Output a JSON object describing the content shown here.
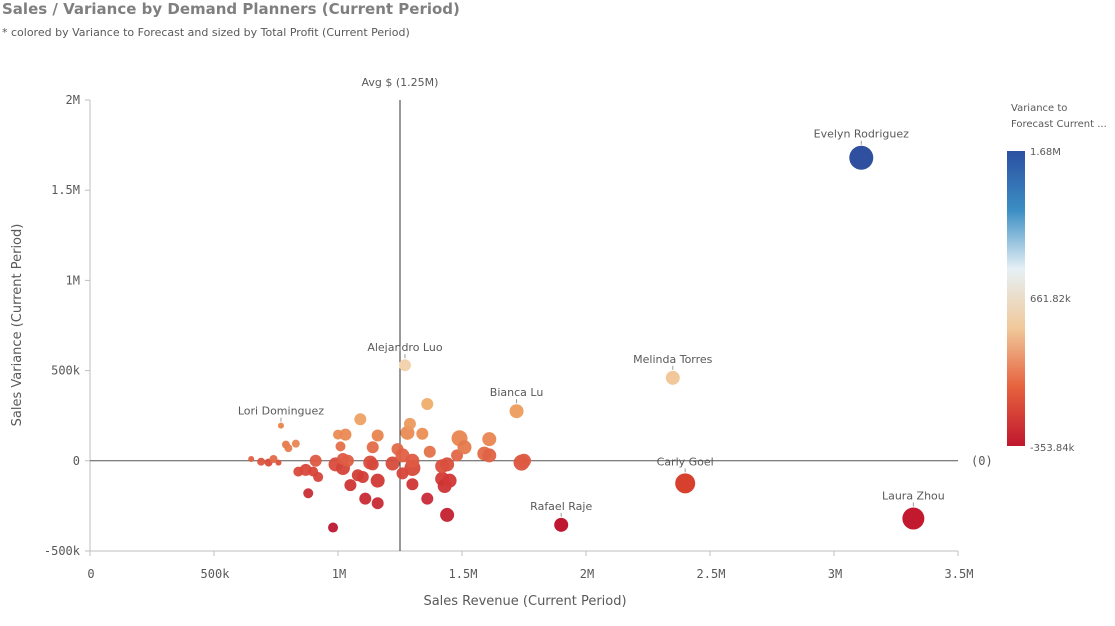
{
  "header": {
    "title": "Sales / Variance by Demand Planners (Current Period)",
    "subtitle": "* colored by Variance to Forecast and sized by Total Profit (Current Period)"
  },
  "chart_data": {
    "type": "scatter",
    "xlabel": "Sales Revenue (Current Period)",
    "ylabel": "Sales Variance (Current Period)",
    "xlim": [
      0,
      3500000
    ],
    "ylim": [
      -500000,
      2000000
    ],
    "x_ticks": [
      {
        "value": 0,
        "label": "0"
      },
      {
        "value": 500000,
        "label": "500k"
      },
      {
        "value": 1000000,
        "label": "1M"
      },
      {
        "value": 1500000,
        "label": "1.5M"
      },
      {
        "value": 2000000,
        "label": "2M"
      },
      {
        "value": 2500000,
        "label": "2.5M"
      },
      {
        "value": 3000000,
        "label": "3M"
      },
      {
        "value": 3500000,
        "label": "3.5M"
      }
    ],
    "y_ticks": [
      {
        "value": -500000,
        "label": "-500k"
      },
      {
        "value": 0,
        "label": "0"
      },
      {
        "value": 500000,
        "label": "500k"
      },
      {
        "value": 1000000,
        "label": "1M"
      },
      {
        "value": 1500000,
        "label": "1.5M"
      },
      {
        "value": 2000000,
        "label": "2M"
      }
    ],
    "reference_lines": [
      {
        "axis": "x",
        "value": 1250000,
        "label": "Avg $ (1.25M)"
      },
      {
        "axis": "y",
        "value": 0,
        "label": "(0)"
      }
    ],
    "color_legend": {
      "title_lines": [
        "Variance to",
        "Forecast Current ..."
      ],
      "max": "1.68M",
      "mid": "661.82k",
      "min": "-353.84k",
      "stops": [
        "#2b50a1",
        "#3b8ec4",
        "#e6f0f5",
        "#f0c99b",
        "#e6623e",
        "#c0172e"
      ]
    },
    "labeled_points": [
      {
        "name": "Evelyn Rodriguez",
        "x": 3110000,
        "y": 1680000,
        "r": 12,
        "color": "#2f4f9f"
      },
      {
        "name": "Melinda Torres",
        "x": 2350000,
        "y": 460000,
        "r": 7,
        "color": "#f2c79b"
      },
      {
        "name": "Alejandro Luo",
        "x": 1270000,
        "y": 530000,
        "r": 6,
        "color": "#f3d3ad"
      },
      {
        "name": "Bianca Lu",
        "x": 1720000,
        "y": 275000,
        "r": 7,
        "color": "#eda164"
      },
      {
        "name": "Lori Dominguez",
        "x": 770000,
        "y": 195000,
        "r": 3,
        "color": "#e98a52"
      },
      {
        "name": "Carly Goel",
        "x": 2400000,
        "y": -125000,
        "r": 10,
        "color": "#d8402e"
      },
      {
        "name": "Rafael Raje",
        "x": 1900000,
        "y": -355000,
        "r": 7,
        "color": "#c01730"
      },
      {
        "name": "Laura Zhou",
        "x": 3320000,
        "y": -320000,
        "r": 11,
        "color": "#c2192f"
      }
    ],
    "points": [
      {
        "x": 650000,
        "y": 10000,
        "r": 3,
        "color": "#e06045"
      },
      {
        "x": 690000,
        "y": -5000,
        "r": 4,
        "color": "#dd5540"
      },
      {
        "x": 720000,
        "y": -10000,
        "r": 4,
        "color": "#d94a3b"
      },
      {
        "x": 740000,
        "y": 10000,
        "r": 4,
        "color": "#e26a47"
      },
      {
        "x": 760000,
        "y": -10000,
        "r": 3,
        "color": "#dc513e"
      },
      {
        "x": 790000,
        "y": 90000,
        "r": 4,
        "color": "#e77a4c"
      },
      {
        "x": 800000,
        "y": 70000,
        "r": 4,
        "color": "#e77d4e"
      },
      {
        "x": 830000,
        "y": 95000,
        "r": 4,
        "color": "#e98552"
      },
      {
        "x": 840000,
        "y": -60000,
        "r": 5,
        "color": "#d84a3a"
      },
      {
        "x": 870000,
        "y": -50000,
        "r": 6,
        "color": "#d9473a"
      },
      {
        "x": 880000,
        "y": -180000,
        "r": 5,
        "color": "#c82d33"
      },
      {
        "x": 900000,
        "y": -60000,
        "r": 5,
        "color": "#d84539"
      },
      {
        "x": 910000,
        "y": 0,
        "r": 6,
        "color": "#de5842"
      },
      {
        "x": 920000,
        "y": -90000,
        "r": 5,
        "color": "#d6433a"
      },
      {
        "x": 980000,
        "y": -370000,
        "r": 5,
        "color": "#bf1731"
      },
      {
        "x": 990000,
        "y": -20000,
        "r": 7,
        "color": "#d84c3d"
      },
      {
        "x": 1000000,
        "y": 145000,
        "r": 5,
        "color": "#ea8b55"
      },
      {
        "x": 1010000,
        "y": 80000,
        "r": 5,
        "color": "#e4714a"
      },
      {
        "x": 1020000,
        "y": -40000,
        "r": 7,
        "color": "#d44539"
      },
      {
        "x": 1020000,
        "y": 10000,
        "r": 6,
        "color": "#de5a43"
      },
      {
        "x": 1030000,
        "y": 145000,
        "r": 6,
        "color": "#ea8953"
      },
      {
        "x": 1040000,
        "y": 0,
        "r": 6,
        "color": "#df5e44"
      },
      {
        "x": 1050000,
        "y": -135000,
        "r": 6,
        "color": "#cf3635"
      },
      {
        "x": 1080000,
        "y": -80000,
        "r": 6,
        "color": "#d33e37"
      },
      {
        "x": 1090000,
        "y": 230000,
        "r": 6,
        "color": "#eda164"
      },
      {
        "x": 1100000,
        "y": -90000,
        "r": 6,
        "color": "#d33d37"
      },
      {
        "x": 1110000,
        "y": -210000,
        "r": 6,
        "color": "#c92a33"
      },
      {
        "x": 1130000,
        "y": -10000,
        "r": 7,
        "color": "#d74e3d"
      },
      {
        "x": 1140000,
        "y": -20000,
        "r": 6,
        "color": "#d74a3b"
      },
      {
        "x": 1140000,
        "y": 75000,
        "r": 6,
        "color": "#e36b48"
      },
      {
        "x": 1160000,
        "y": -110000,
        "r": 7,
        "color": "#d03936"
      },
      {
        "x": 1160000,
        "y": 140000,
        "r": 6,
        "color": "#e88450"
      },
      {
        "x": 1160000,
        "y": -235000,
        "r": 6,
        "color": "#c82a33"
      },
      {
        "x": 1220000,
        "y": -15000,
        "r": 7,
        "color": "#d64b3c"
      },
      {
        "x": 1240000,
        "y": 65000,
        "r": 6,
        "color": "#e3694a"
      },
      {
        "x": 1260000,
        "y": -70000,
        "r": 6,
        "color": "#d64439"
      },
      {
        "x": 1260000,
        "y": 30000,
        "r": 7,
        "color": "#e06044"
      },
      {
        "x": 1280000,
        "y": 155000,
        "r": 7,
        "color": "#ea8b54"
      },
      {
        "x": 1290000,
        "y": 205000,
        "r": 6,
        "color": "#ec9a5e"
      },
      {
        "x": 1300000,
        "y": -130000,
        "r": 6,
        "color": "#cf3535"
      },
      {
        "x": 1300000,
        "y": -40000,
        "r": 8,
        "color": "#d74a3b"
      },
      {
        "x": 1300000,
        "y": 0,
        "r": 7,
        "color": "#df5a43"
      },
      {
        "x": 1340000,
        "y": 150000,
        "r": 6,
        "color": "#eb8d55"
      },
      {
        "x": 1360000,
        "y": -210000,
        "r": 6,
        "color": "#c9293a"
      },
      {
        "x": 1360000,
        "y": 315000,
        "r": 6,
        "color": "#efae6c"
      },
      {
        "x": 1370000,
        "y": 50000,
        "r": 6,
        "color": "#e4724a"
      },
      {
        "x": 1420000,
        "y": -100000,
        "r": 7,
        "color": "#d23b37"
      },
      {
        "x": 1420000,
        "y": -30000,
        "r": 7,
        "color": "#da503e"
      },
      {
        "x": 1430000,
        "y": -140000,
        "r": 7,
        "color": "#ce3334"
      },
      {
        "x": 1440000,
        "y": -300000,
        "r": 7,
        "color": "#c3202f"
      },
      {
        "x": 1440000,
        "y": -20000,
        "r": 7,
        "color": "#d94f3d"
      },
      {
        "x": 1450000,
        "y": -110000,
        "r": 7,
        "color": "#d13836"
      },
      {
        "x": 1480000,
        "y": 30000,
        "r": 6,
        "color": "#e26647"
      },
      {
        "x": 1490000,
        "y": 125000,
        "r": 8,
        "color": "#e98551"
      },
      {
        "x": 1510000,
        "y": 75000,
        "r": 7,
        "color": "#e57a4c"
      },
      {
        "x": 1590000,
        "y": 40000,
        "r": 7,
        "color": "#e26a47"
      },
      {
        "x": 1610000,
        "y": 120000,
        "r": 7,
        "color": "#e98553"
      },
      {
        "x": 1610000,
        "y": 30000,
        "r": 7,
        "color": "#e06244"
      },
      {
        "x": 1740000,
        "y": -10000,
        "r": 8,
        "color": "#db5540"
      },
      {
        "x": 1750000,
        "y": 0,
        "r": 7,
        "color": "#de5a42"
      }
    ]
  }
}
